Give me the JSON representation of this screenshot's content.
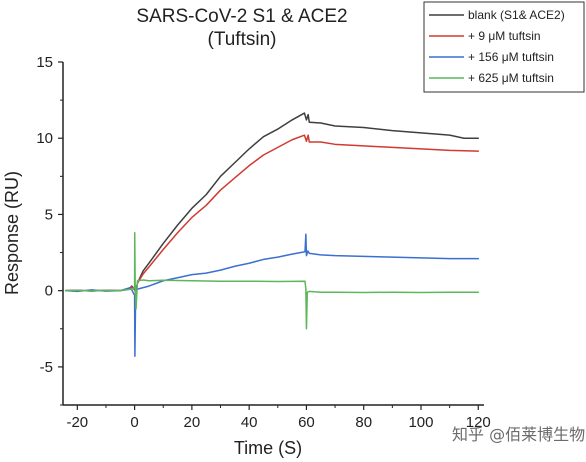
{
  "chart_data": {
    "type": "line",
    "title": "SARS-CoV-2 S1 & ACE2",
    "subtitle": "(Tuftsin)",
    "xlabel": "Time (S)",
    "ylabel": "Response (RU)",
    "xlim": [
      -25,
      122
    ],
    "ylim": [
      -7.5,
      15
    ],
    "xticks": [
      -20,
      0,
      20,
      40,
      60,
      80,
      100,
      120
    ],
    "yticks": [
      -5,
      0,
      5,
      10,
      15
    ],
    "legend_position": "top-right",
    "series": [
      {
        "name": "blank (S1& ACE2)",
        "color": "#3f3f3f",
        "points": [
          [
            -24,
            0
          ],
          [
            -20,
            0.02
          ],
          [
            -15,
            -0.02
          ],
          [
            -10,
            0.03
          ],
          [
            -5,
            0
          ],
          [
            -2,
            0.1
          ],
          [
            -1,
            0.3
          ],
          [
            0,
            0.1
          ],
          [
            0.4,
            -0.15
          ],
          [
            1,
            0.5
          ],
          [
            3,
            1.3
          ],
          [
            5,
            1.8
          ],
          [
            10,
            3.1
          ],
          [
            15,
            4.3
          ],
          [
            20,
            5.4
          ],
          [
            25,
            6.3
          ],
          [
            30,
            7.5
          ],
          [
            35,
            8.4
          ],
          [
            40,
            9.3
          ],
          [
            45,
            10.1
          ],
          [
            50,
            10.6
          ],
          [
            55,
            11.2
          ],
          [
            59.3,
            11.65
          ],
          [
            60,
            11.2
          ],
          [
            60.6,
            11.55
          ],
          [
            61,
            11.05
          ],
          [
            65,
            11.0
          ],
          [
            70,
            10.8
          ],
          [
            75,
            10.75
          ],
          [
            80,
            10.7
          ],
          [
            90,
            10.5
          ],
          [
            100,
            10.35
          ],
          [
            110,
            10.2
          ],
          [
            115,
            10.0
          ],
          [
            120,
            10.0
          ]
        ]
      },
      {
        "name": "+ 9 μM tuftsin",
        "color": "#d03a32",
        "points": [
          [
            -24,
            0
          ],
          [
            -20,
            0.03
          ],
          [
            -15,
            -0.02
          ],
          [
            -10,
            0.02
          ],
          [
            -5,
            0
          ],
          [
            -2,
            0.1
          ],
          [
            -1,
            0.25
          ],
          [
            0,
            0.05
          ],
          [
            0.4,
            -0.1
          ],
          [
            1,
            0.5
          ],
          [
            3,
            1.1
          ],
          [
            5,
            1.55
          ],
          [
            10,
            2.7
          ],
          [
            15,
            3.8
          ],
          [
            20,
            4.8
          ],
          [
            25,
            5.6
          ],
          [
            30,
            6.6
          ],
          [
            35,
            7.4
          ],
          [
            40,
            8.2
          ],
          [
            45,
            8.9
          ],
          [
            50,
            9.4
          ],
          [
            55,
            9.9
          ],
          [
            59.3,
            10.2
          ],
          [
            60,
            9.8
          ],
          [
            60.6,
            10.2
          ],
          [
            61,
            9.75
          ],
          [
            65,
            9.75
          ],
          [
            70,
            9.6
          ],
          [
            75,
            9.55
          ],
          [
            80,
            9.5
          ],
          [
            90,
            9.4
          ],
          [
            100,
            9.3
          ],
          [
            110,
            9.2
          ],
          [
            120,
            9.15
          ]
        ]
      },
      {
        "name": "+ 156 μM tuftsin",
        "color": "#3b6fd1",
        "points": [
          [
            -24,
            0
          ],
          [
            -20,
            -0.05
          ],
          [
            -15,
            0.05
          ],
          [
            -10,
            -0.03
          ],
          [
            -5,
            0
          ],
          [
            -1.5,
            0.2
          ],
          [
            -1,
            0.05
          ],
          [
            0,
            -0.3
          ],
          [
            0.1,
            -4.3
          ],
          [
            0.4,
            0.3
          ],
          [
            1,
            0.1
          ],
          [
            3,
            0.2
          ],
          [
            5,
            0.3
          ],
          [
            10,
            0.65
          ],
          [
            15,
            0.85
          ],
          [
            20,
            1.05
          ],
          [
            25,
            1.15
          ],
          [
            30,
            1.35
          ],
          [
            35,
            1.6
          ],
          [
            40,
            1.8
          ],
          [
            45,
            2.05
          ],
          [
            50,
            2.2
          ],
          [
            55,
            2.4
          ],
          [
            59.5,
            2.55
          ],
          [
            59.8,
            3.7
          ],
          [
            60,
            2.3
          ],
          [
            60.5,
            2.6
          ],
          [
            61,
            2.45
          ],
          [
            65,
            2.35
          ],
          [
            70,
            2.3
          ],
          [
            80,
            2.25
          ],
          [
            90,
            2.2
          ],
          [
            100,
            2.15
          ],
          [
            110,
            2.1
          ],
          [
            120,
            2.1
          ]
        ]
      },
      {
        "name": "+ 625 μM tuftsin",
        "color": "#5eb55a",
        "points": [
          [
            -24,
            0
          ],
          [
            -20,
            0.02
          ],
          [
            -15,
            -0.02
          ],
          [
            -10,
            0.02
          ],
          [
            -5,
            0
          ],
          [
            -1,
            0.1
          ],
          [
            0,
            0.2
          ],
          [
            0.05,
            3.8
          ],
          [
            0.2,
            0.3
          ],
          [
            0.5,
            -1.2
          ],
          [
            1,
            0.65
          ],
          [
            3,
            0.7
          ],
          [
            5,
            0.65
          ],
          [
            10,
            0.68
          ],
          [
            20,
            0.65
          ],
          [
            30,
            0.62
          ],
          [
            40,
            0.62
          ],
          [
            50,
            0.6
          ],
          [
            59.5,
            0.62
          ],
          [
            59.8,
            0.1
          ],
          [
            60,
            -2.5
          ],
          [
            60.3,
            -0.1
          ],
          [
            61,
            -0.05
          ],
          [
            65,
            -0.1
          ],
          [
            70,
            -0.1
          ],
          [
            80,
            -0.12
          ],
          [
            90,
            -0.1
          ],
          [
            100,
            -0.12
          ],
          [
            110,
            -0.1
          ],
          [
            120,
            -0.1
          ]
        ]
      }
    ]
  },
  "watermark": "知乎 @佰莱博生物"
}
